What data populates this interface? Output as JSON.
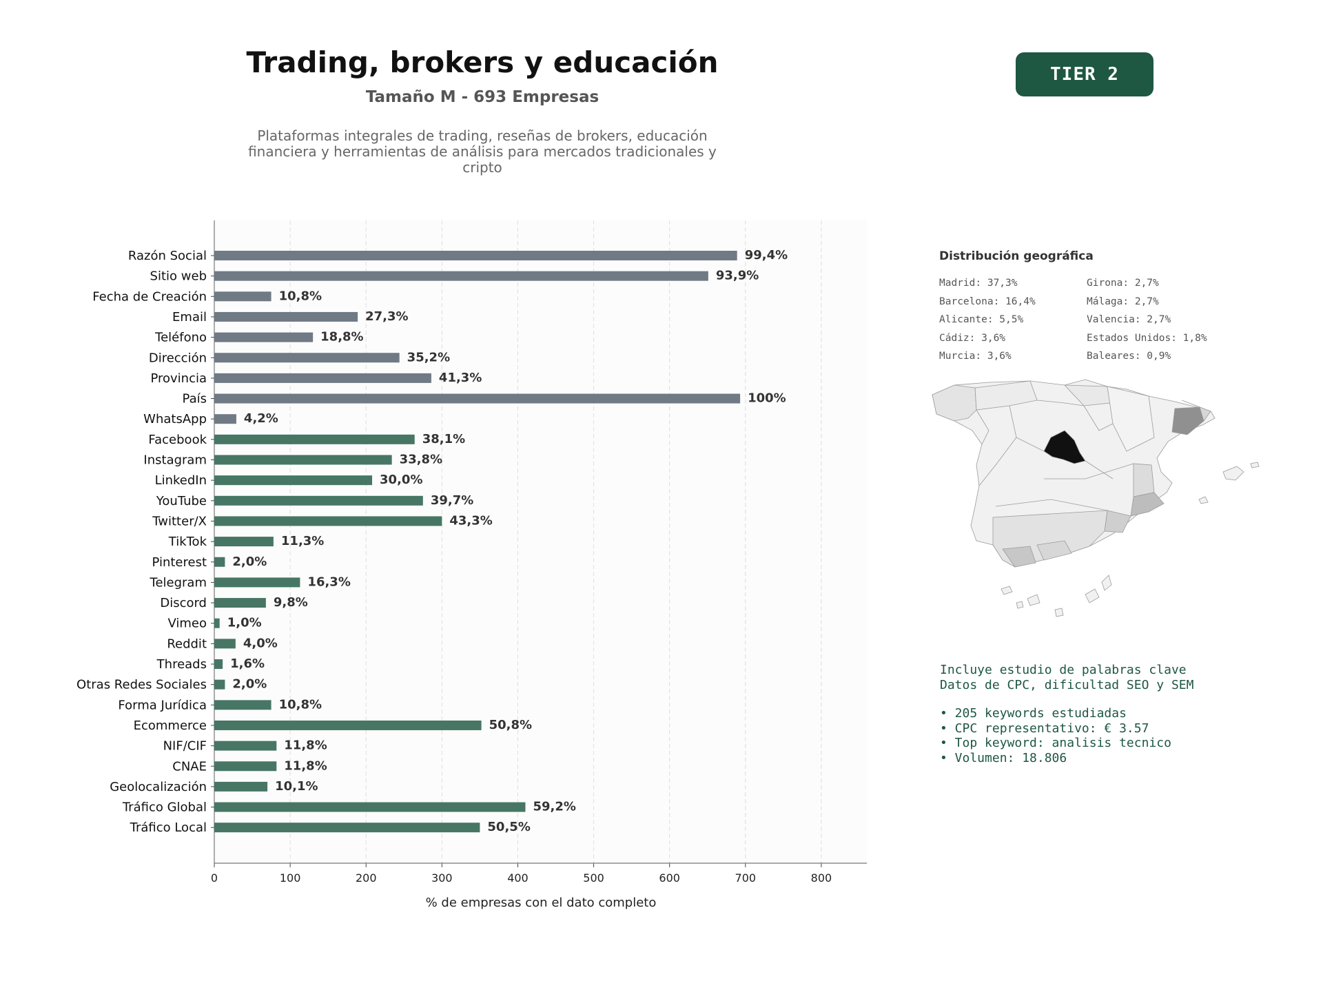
{
  "header": {
    "title": "Trading, brokers y educación",
    "subtitle": "Tamaño M - 693 Empresas",
    "description_lines": [
      "Plataformas integrales de trading, reseñas de brokers, educación",
      "financiera y herramientas de análisis para mercados tradicionales y",
      "cripto"
    ],
    "tier_badge": "TIER 2"
  },
  "chart_data": {
    "type": "bar",
    "orientation": "horizontal",
    "title": "",
    "xlabel": "% de empresas con el dato completo",
    "ylabel": "",
    "xlim": [
      0,
      860
    ],
    "xticks": [
      0,
      100,
      200,
      300,
      400,
      500,
      600,
      700,
      800
    ],
    "grid": "vertical dashed",
    "categories": [
      "Razón Social",
      "Sitio web",
      "Fecha de Creación",
      "Email",
      "Teléfono",
      "Dirección",
      "Provincia",
      "País",
      "WhatsApp",
      "Facebook",
      "Instagram",
      "LinkedIn",
      "YouTube",
      "Twitter/X",
      "TikTok",
      "Pinterest",
      "Telegram",
      "Discord",
      "Vimeo",
      "Reddit",
      "Threads",
      "Otras Redes Sociales",
      "Forma Jurídica",
      "Ecommerce",
      "NIF/CIF",
      "CNAE",
      "Geolocalización",
      "Tráfico Global",
      "Tráfico Local"
    ],
    "values": [
      689,
      651,
      75,
      189,
      130,
      244,
      286,
      693,
      29,
      264,
      234,
      208,
      275,
      300,
      78,
      14,
      113,
      68,
      7,
      28,
      11,
      14,
      75,
      352,
      82,
      82,
      70,
      410,
      350
    ],
    "labels": [
      "99,4%",
      "93,9%",
      "10,8%",
      "27,3%",
      "18,8%",
      "35,2%",
      "41,3%",
      "100%",
      "4,2%",
      "38,1%",
      "33,8%",
      "30,0%",
      "39,7%",
      "43,3%",
      "11,3%",
      "2,0%",
      "16,3%",
      "9,8%",
      "1,0%",
      "4,0%",
      "1,6%",
      "2,0%",
      "10,8%",
      "50,8%",
      "11,8%",
      "11,8%",
      "10,1%",
      "59,2%",
      "50,5%"
    ],
    "groups": [
      "gray",
      "gray",
      "gray",
      "gray",
      "gray",
      "gray",
      "gray",
      "gray",
      "gray",
      "green",
      "green",
      "green",
      "green",
      "green",
      "green",
      "green",
      "green",
      "green",
      "green",
      "green",
      "green",
      "green",
      "green",
      "green",
      "green",
      "green",
      "green",
      "green",
      "green"
    ],
    "colors": {
      "gray": "#6f7a85",
      "green": "#477665"
    }
  },
  "geo": {
    "title": "Distribución geográfica",
    "items": [
      "Madrid: 37,3%",
      "Girona: 2,7%",
      "Barcelona: 16,4%",
      "Málaga: 2,7%",
      "Alicante: 5,5%",
      "Valencia: 2,7%",
      "Cádiz: 3,6%",
      "Estados Unidos: 1,8%",
      "Murcia: 3,6%",
      "Baleares: 0,9%"
    ]
  },
  "keywords": {
    "line1": "Incluye estudio de palabras clave",
    "line2": "Datos de CPC, dificultad SEO y SEM",
    "bullet1": "• 205 keywords estudiadas",
    "bullet2": "• CPC representativo: € 3.57",
    "bullet3": "• Top keyword: analisis tecnico",
    "bullet4": "• Volumen: 18.806"
  }
}
